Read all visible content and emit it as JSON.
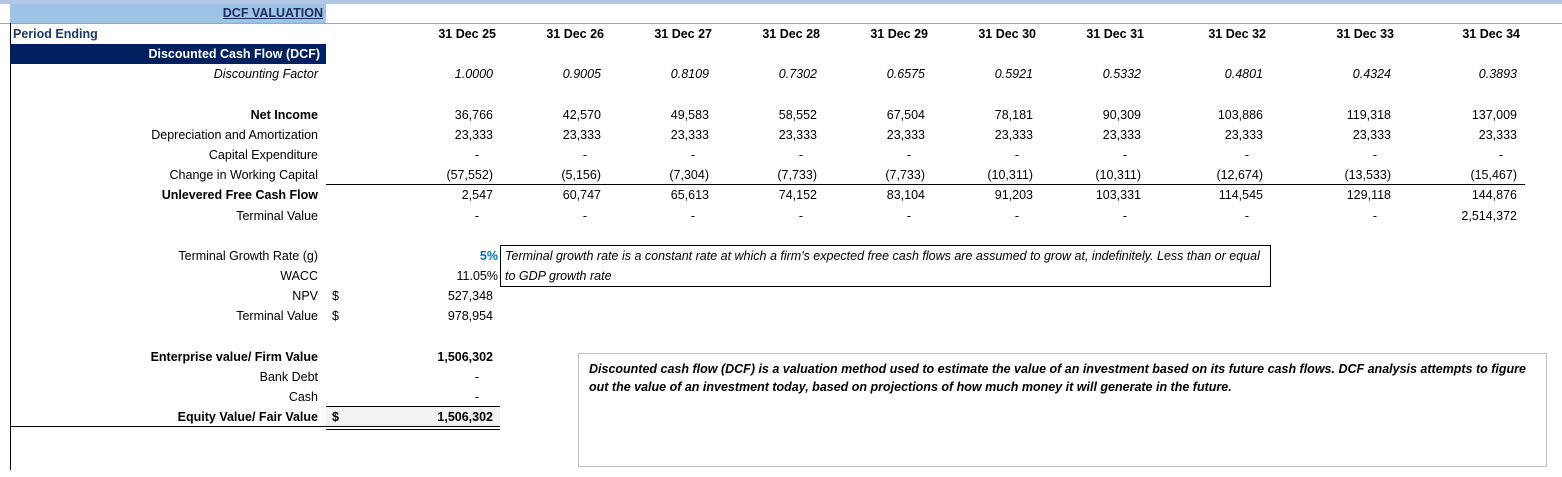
{
  "sheet": {
    "title": "DCF VALUATION",
    "period_label": "Period Ending",
    "periods": [
      "31 Dec 25",
      "31 Dec 26",
      "31 Dec 27",
      "31 Dec 28",
      "31 Dec 29",
      "31 Dec 30",
      "31 Dec 31",
      "31 Dec 32",
      "31 Dec 33",
      "31 Dec 34"
    ],
    "section_header": "Discounted Cash Flow (DCF)",
    "rows": [
      {
        "label": "Discounting Factor",
        "style": "italic",
        "values": [
          "1.0000",
          "0.9005",
          "0.8109",
          "0.7302",
          "0.6575",
          "0.5921",
          "0.5332",
          "0.4801",
          "0.4324",
          "0.3893"
        ]
      },
      {
        "label": "Net Income",
        "style": "bold-label",
        "values": [
          "36,766",
          "42,570",
          "49,583",
          "58,552",
          "67,504",
          "78,181",
          "90,309",
          "103,886",
          "119,318",
          "137,009"
        ]
      },
      {
        "label": "Depreciation and Amortization",
        "style": "",
        "values": [
          "23,333",
          "23,333",
          "23,333",
          "23,333",
          "23,333",
          "23,333",
          "23,333",
          "23,333",
          "23,333",
          "23,333"
        ]
      },
      {
        "label": "Capital Expenditure",
        "style": "",
        "values": [
          "-",
          "-",
          "-",
          "-",
          "-",
          "-",
          "-",
          "-",
          "-",
          "-"
        ]
      },
      {
        "label": "Change in Working Capital",
        "style": "",
        "values": [
          "(57,552)",
          "(5,156)",
          "(7,304)",
          "(7,733)",
          "(7,733)",
          "(10,311)",
          "(10,311)",
          "(12,674)",
          "(13,533)",
          "(15,467)"
        ]
      },
      {
        "label": "Unlevered Free Cash Flow",
        "style": "bold-label",
        "values": [
          "2,547",
          "60,747",
          "65,613",
          "74,152",
          "83,104",
          "91,203",
          "103,331",
          "114,545",
          "129,118",
          "144,876"
        ]
      },
      {
        "label": "Terminal Value",
        "style": "",
        "values": [
          "-",
          "-",
          "-",
          "-",
          "-",
          "-",
          "-",
          "-",
          "-",
          "2,514,372"
        ]
      }
    ],
    "summary": [
      {
        "label": "Terminal Growth Rate (g)",
        "currency": "",
        "value": "5%",
        "style": "blue"
      },
      {
        "label": "WACC",
        "currency": "",
        "value": "11.05%",
        "style": ""
      },
      {
        "label": "NPV",
        "currency": "$",
        "value": "527,348",
        "style": ""
      },
      {
        "label": "Terminal Value",
        "currency": "$",
        "value": "978,954",
        "style": ""
      },
      {
        "label": "Enterprise value/ Firm Value",
        "currency": "",
        "value": "1,506,302",
        "style": "bold"
      },
      {
        "label": "Bank Debt",
        "currency": "",
        "value": "-",
        "style": ""
      },
      {
        "label": "Cash",
        "currency": "",
        "value": "-",
        "style": ""
      },
      {
        "label": "Equity Value/ Fair Value",
        "currency": "$",
        "value": "1,506,302",
        "style": "bold"
      }
    ],
    "notes": {
      "terminal_growth": "Terminal growth rate is a constant rate at which a firm's expected free cash flows are assumed to grow at, indefinitely. Less than or equal to GDP growth rate",
      "dcf_definition": "Discounted cash flow (DCF) is a valuation method used to estimate the value of an investment based on its future cash flows. DCF analysis attempts to figure out the value of an investment today, based on projections of how much money it will generate in the future."
    },
    "colors": {
      "header_band": "#002060",
      "title_fill": "#9dc3e6",
      "input_blue": "#0070c0"
    }
  }
}
